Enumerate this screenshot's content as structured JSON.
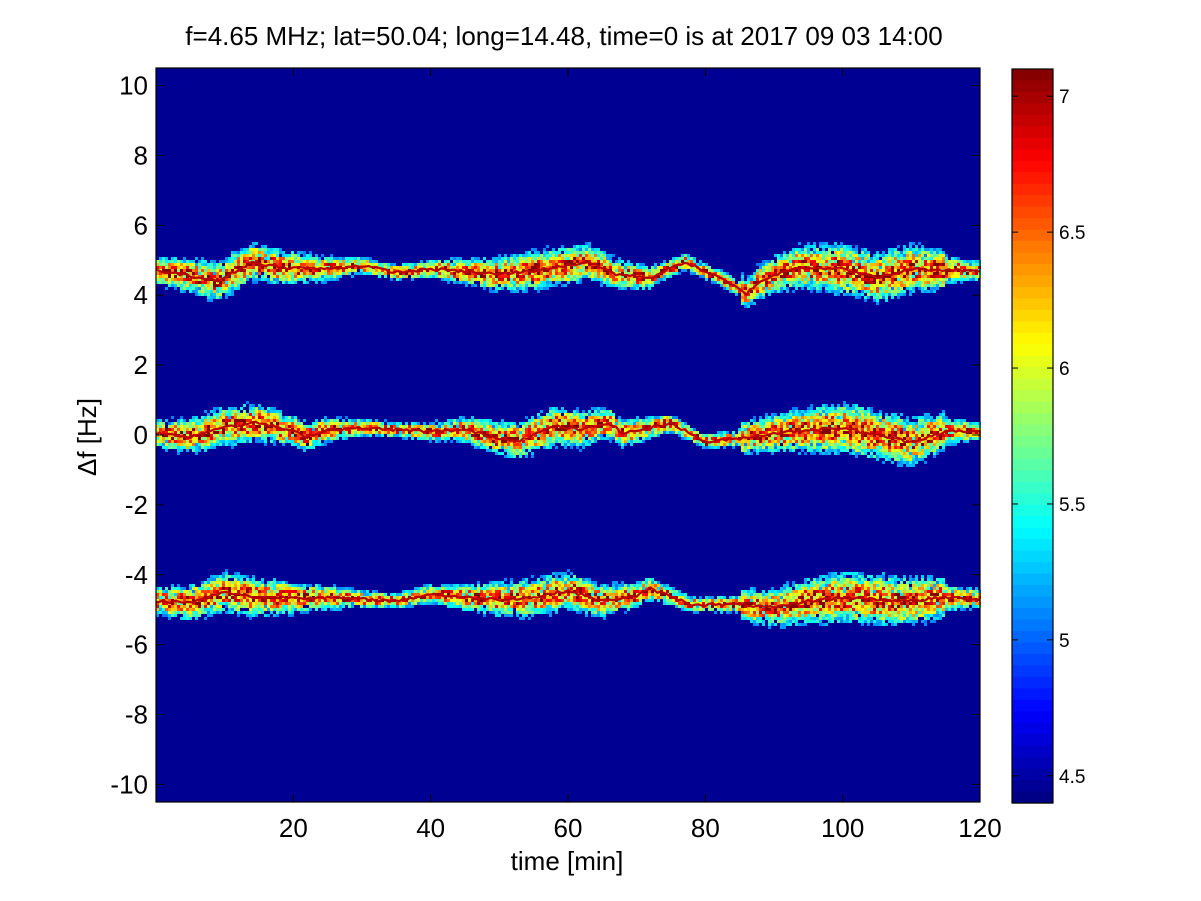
{
  "chart_data": {
    "type": "heatmap",
    "title": "f=4.65 MHz;  lat=50.04; long=14.48, time=0 is at 2017 09 03 14:00",
    "xlabel": "time [min]",
    "ylabel": "Δf [Hz]",
    "xlim": [
      0,
      120
    ],
    "ylim": [
      -10.5,
      10.5
    ],
    "x_ticks": [
      20,
      40,
      60,
      80,
      100,
      120
    ],
    "y_ticks": [
      10,
      8,
      6,
      4,
      2,
      0,
      -2,
      -4,
      -6,
      -8,
      -10
    ],
    "colormap": "jet",
    "colorbar": {
      "range": [
        4.4,
        7.1
      ],
      "ticks": [
        7,
        6.5,
        6,
        5.5,
        5,
        4.5
      ],
      "placement": "right"
    },
    "background_value": 4.45,
    "bands": [
      {
        "center_hz": 4.7,
        "trace": [
          [
            0,
            4.7
          ],
          [
            5,
            4.55
          ],
          [
            9,
            4.4
          ],
          [
            14,
            4.95
          ],
          [
            18,
            4.8
          ],
          [
            25,
            4.75
          ],
          [
            30,
            4.85
          ],
          [
            35,
            4.65
          ],
          [
            40,
            4.75
          ],
          [
            50,
            4.6
          ],
          [
            55,
            4.7
          ],
          [
            63,
            4.95
          ],
          [
            67,
            4.6
          ],
          [
            72,
            4.5
          ],
          [
            77,
            4.95
          ],
          [
            82,
            4.5
          ],
          [
            86,
            4.05
          ],
          [
            88,
            4.4
          ],
          [
            93,
            4.8
          ],
          [
            100,
            4.75
          ],
          [
            105,
            4.5
          ],
          [
            110,
            4.75
          ],
          [
            120,
            4.7
          ]
        ]
      },
      {
        "center_hz": 0,
        "trace": [
          [
            0,
            0.05
          ],
          [
            5,
            -0.05
          ],
          [
            10,
            0.25
          ],
          [
            15,
            0.35
          ],
          [
            20,
            0.1
          ],
          [
            22,
            -0.05
          ],
          [
            25,
            0.15
          ],
          [
            30,
            0.2
          ],
          [
            40,
            0.1
          ],
          [
            45,
            0.15
          ],
          [
            50,
            -0.1
          ],
          [
            53,
            -0.15
          ],
          [
            58,
            0.25
          ],
          [
            62,
            0.15
          ],
          [
            66,
            0.35
          ],
          [
            68,
            0.05
          ],
          [
            72,
            0.2
          ],
          [
            75,
            0.35
          ],
          [
            80,
            -0.2
          ],
          [
            85,
            -0.1
          ],
          [
            90,
            0.05
          ],
          [
            95,
            0.15
          ],
          [
            100,
            0.2
          ],
          [
            105,
            0.0
          ],
          [
            110,
            -0.2
          ],
          [
            115,
            0.1
          ],
          [
            120,
            0.1
          ]
        ]
      },
      {
        "center_hz": -4.7,
        "trace": [
          [
            0,
            -4.75
          ],
          [
            5,
            -4.8
          ],
          [
            10,
            -4.5
          ],
          [
            15,
            -4.65
          ],
          [
            25,
            -4.65
          ],
          [
            35,
            -4.75
          ],
          [
            40,
            -4.55
          ],
          [
            45,
            -4.65
          ],
          [
            50,
            -4.7
          ],
          [
            55,
            -4.65
          ],
          [
            60,
            -4.45
          ],
          [
            65,
            -4.75
          ],
          [
            70,
            -4.6
          ],
          [
            72,
            -4.4
          ],
          [
            78,
            -4.85
          ],
          [
            85,
            -4.85
          ],
          [
            90,
            -4.95
          ],
          [
            95,
            -4.75
          ],
          [
            100,
            -4.65
          ],
          [
            105,
            -4.7
          ],
          [
            110,
            -4.75
          ],
          [
            115,
            -4.65
          ],
          [
            120,
            -4.7
          ]
        ]
      }
    ]
  }
}
